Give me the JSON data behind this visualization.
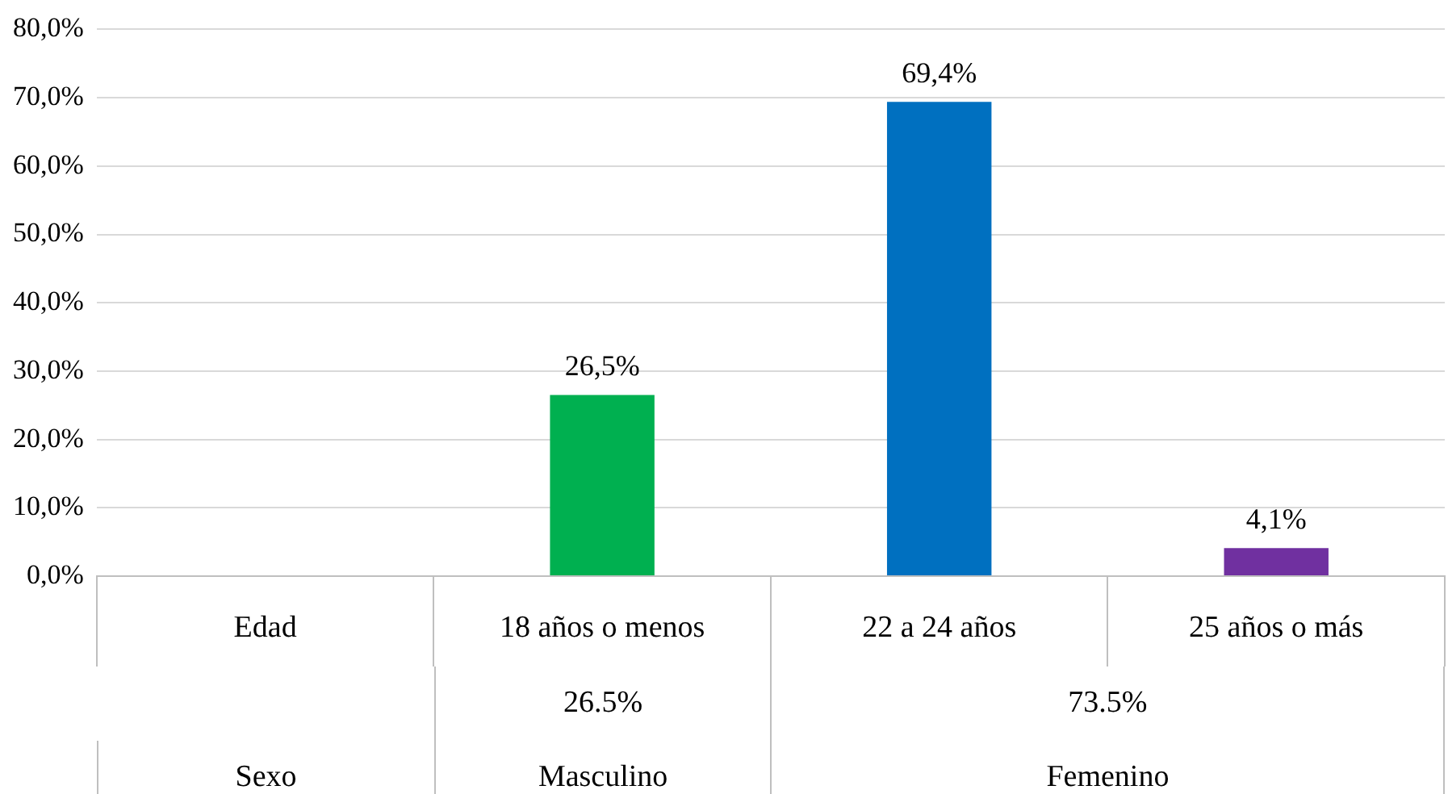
{
  "chart_data": {
    "type": "bar",
    "categories": [
      "Edad",
      "18 años o menos",
      "22 a 24 años",
      "25 años o más"
    ],
    "values": [
      null,
      26.5,
      69.4,
      4.1
    ],
    "colors": [
      "#000000",
      "#00b050",
      "#0070c0",
      "#7030a0"
    ],
    "value_labels": [
      null,
      "26,5%",
      "69,4%",
      "4,1%"
    ],
    "ylim": [
      0,
      80
    ],
    "yticks": [
      {
        "value": 0,
        "label": "0,0%"
      },
      {
        "value": 10,
        "label": "10,0%"
      },
      {
        "value": 20,
        "label": "20,0%"
      },
      {
        "value": 30,
        "label": "30,0%"
      },
      {
        "value": 40,
        "label": "40,0%"
      },
      {
        "value": 50,
        "label": "50,0%"
      },
      {
        "value": 60,
        "label": "60,0%"
      },
      {
        "value": 70,
        "label": "70,0%"
      },
      {
        "value": 80,
        "label": "80,0%"
      }
    ],
    "grid": "y",
    "annotations": [
      "26.5%",
      "73.5%",
      "Sexo",
      "Masculino",
      "Femenino"
    ]
  }
}
